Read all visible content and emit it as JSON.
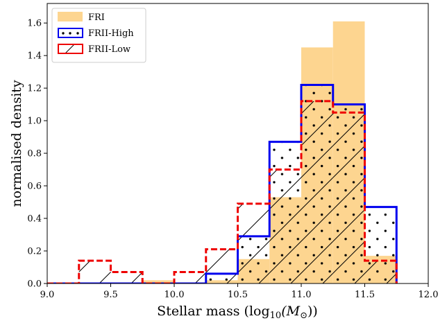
{
  "chart_data": {
    "type": "bar",
    "xlabel": "Stellar mass (log",
    "xlabel_sub": "10",
    "xlabel_mid": "(M",
    "xlabel_sun": "⊙",
    "xlabel_end": "))",
    "ylabel": "normalised density",
    "xlim": [
      9.0,
      12.0
    ],
    "ylim": [
      0.0,
      1.72
    ],
    "xticks": [
      9.0,
      9.5,
      10.0,
      10.5,
      11.0,
      11.5,
      12.0
    ],
    "xtick_labels": [
      "9.0",
      "9.5",
      "10.0",
      "10.5",
      "11.0",
      "11.5",
      "12.0"
    ],
    "yticks": [
      0.0,
      0.2,
      0.4,
      0.6,
      0.8,
      1.0,
      1.2,
      1.4,
      1.6
    ],
    "ytick_labels": [
      "0.0",
      "0.2",
      "0.4",
      "0.6",
      "0.8",
      "1.0",
      "1.2",
      "1.4",
      "1.6"
    ],
    "bin_edges": [
      9.0,
      9.25,
      9.5,
      9.75,
      10.0,
      10.25,
      10.5,
      10.75,
      11.0,
      11.25,
      11.5,
      11.75
    ],
    "legend_position": "top-left",
    "grid": false,
    "series": [
      {
        "name": "FRI",
        "style": "filled",
        "color": "#fdd590",
        "values": [
          0.0,
          0.0,
          0.0,
          0.02,
          0.0,
          0.02,
          0.15,
          0.53,
          1.45,
          1.61,
          0.17
        ]
      },
      {
        "name": "FRII-High",
        "style": "step-dots",
        "color": "#0000ee",
        "values": [
          0.0,
          0.0,
          0.0,
          0.0,
          0.0,
          0.06,
          0.29,
          0.87,
          1.22,
          1.1,
          0.47
        ]
      },
      {
        "name": "FRII-Low",
        "style": "step-dashed-hatch",
        "color": "#ee0000",
        "values": [
          0.0,
          0.14,
          0.07,
          0.0,
          0.07,
          0.21,
          0.49,
          0.7,
          1.12,
          1.05,
          0.14
        ]
      }
    ]
  }
}
